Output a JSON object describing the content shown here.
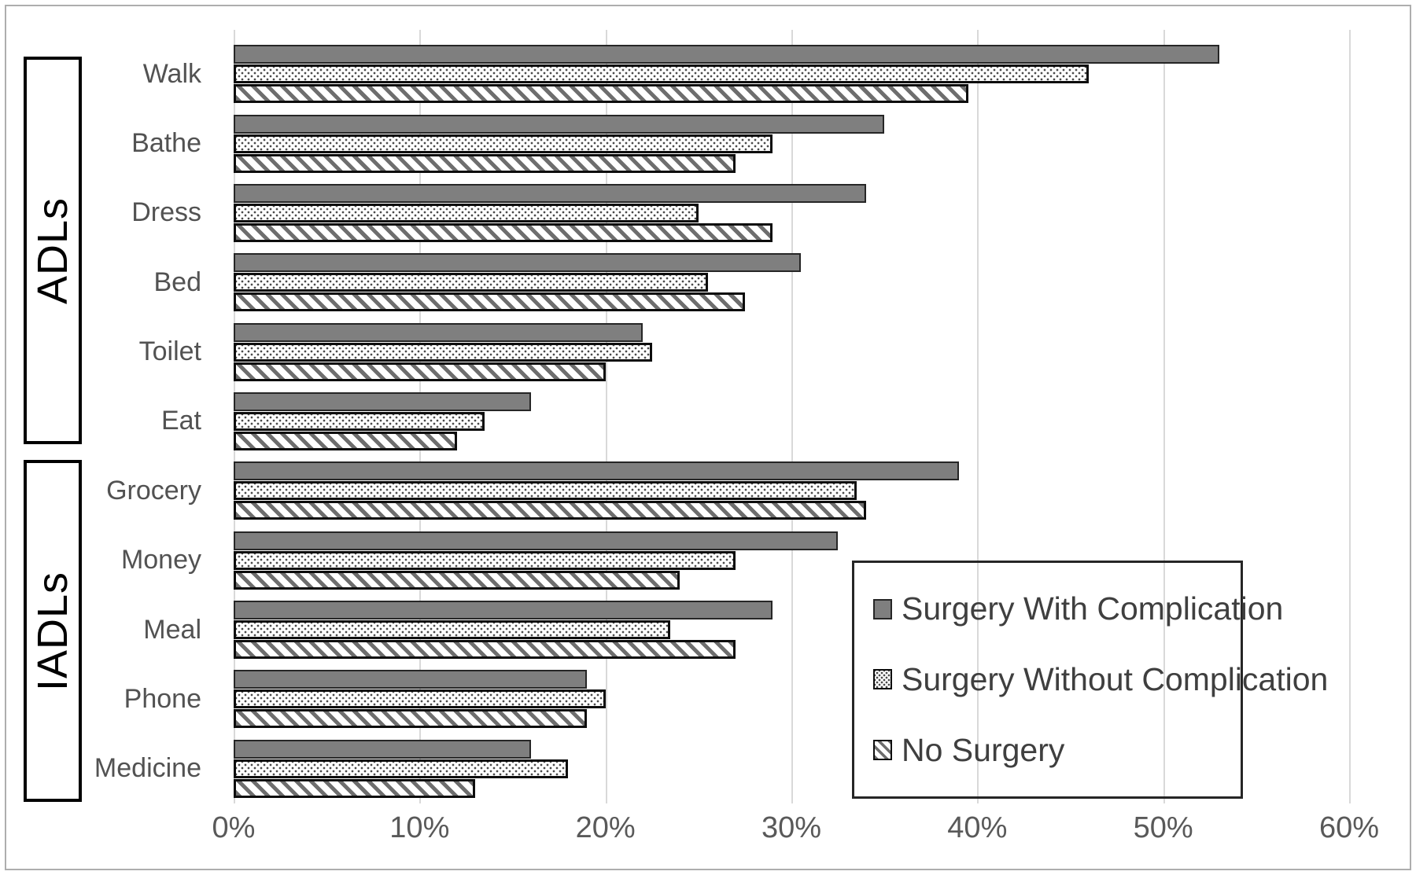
{
  "colors": {
    "solid_bar_fill": "#7f7f7f",
    "bar_border": "#0d0d0d",
    "gridline": "#d9d9d9",
    "axis_text": "#595959",
    "category_text": "#525252",
    "group_label_text": "#000000",
    "figure_border": "#aeaeae"
  },
  "chart_data": {
    "type": "bar",
    "orientation": "horizontal",
    "title": "",
    "xlabel": "",
    "ylabel": "",
    "xlim": [
      0,
      60
    ],
    "x_tick_labels": [
      "0%",
      "10%",
      "20%",
      "30%",
      "40%",
      "50%",
      "60%"
    ],
    "x_tick_values": [
      0,
      10,
      20,
      30,
      40,
      50,
      60
    ],
    "grid": "vertical",
    "legend_position": "inside-bottom-right",
    "row_groups": [
      {
        "label": "ADLs",
        "category_indices": [
          0,
          5
        ]
      },
      {
        "label": "IADLs",
        "category_indices": [
          6,
          10
        ]
      }
    ],
    "categories": [
      "Walk",
      "Bathe",
      "Dress",
      "Bed",
      "Toilet",
      "Eat",
      "Grocery",
      "Money",
      "Meal",
      "Phone",
      "Medicine"
    ],
    "series": [
      {
        "name": "Surgery With Complication",
        "pattern": "solid-gray",
        "values": [
          53,
          35,
          34,
          30.5,
          22,
          16,
          39,
          32.5,
          29,
          19,
          16
        ]
      },
      {
        "name": "Surgery Without Complication",
        "pattern": "dotted",
        "values": [
          46,
          29,
          25,
          25.5,
          22.5,
          13.5,
          33.5,
          27,
          23.5,
          20,
          18
        ]
      },
      {
        "name": "No Surgery",
        "pattern": "diagonal-hatch",
        "values": [
          39.5,
          27,
          29,
          27.5,
          20,
          12,
          34,
          24,
          27,
          19,
          13
        ]
      }
    ]
  }
}
